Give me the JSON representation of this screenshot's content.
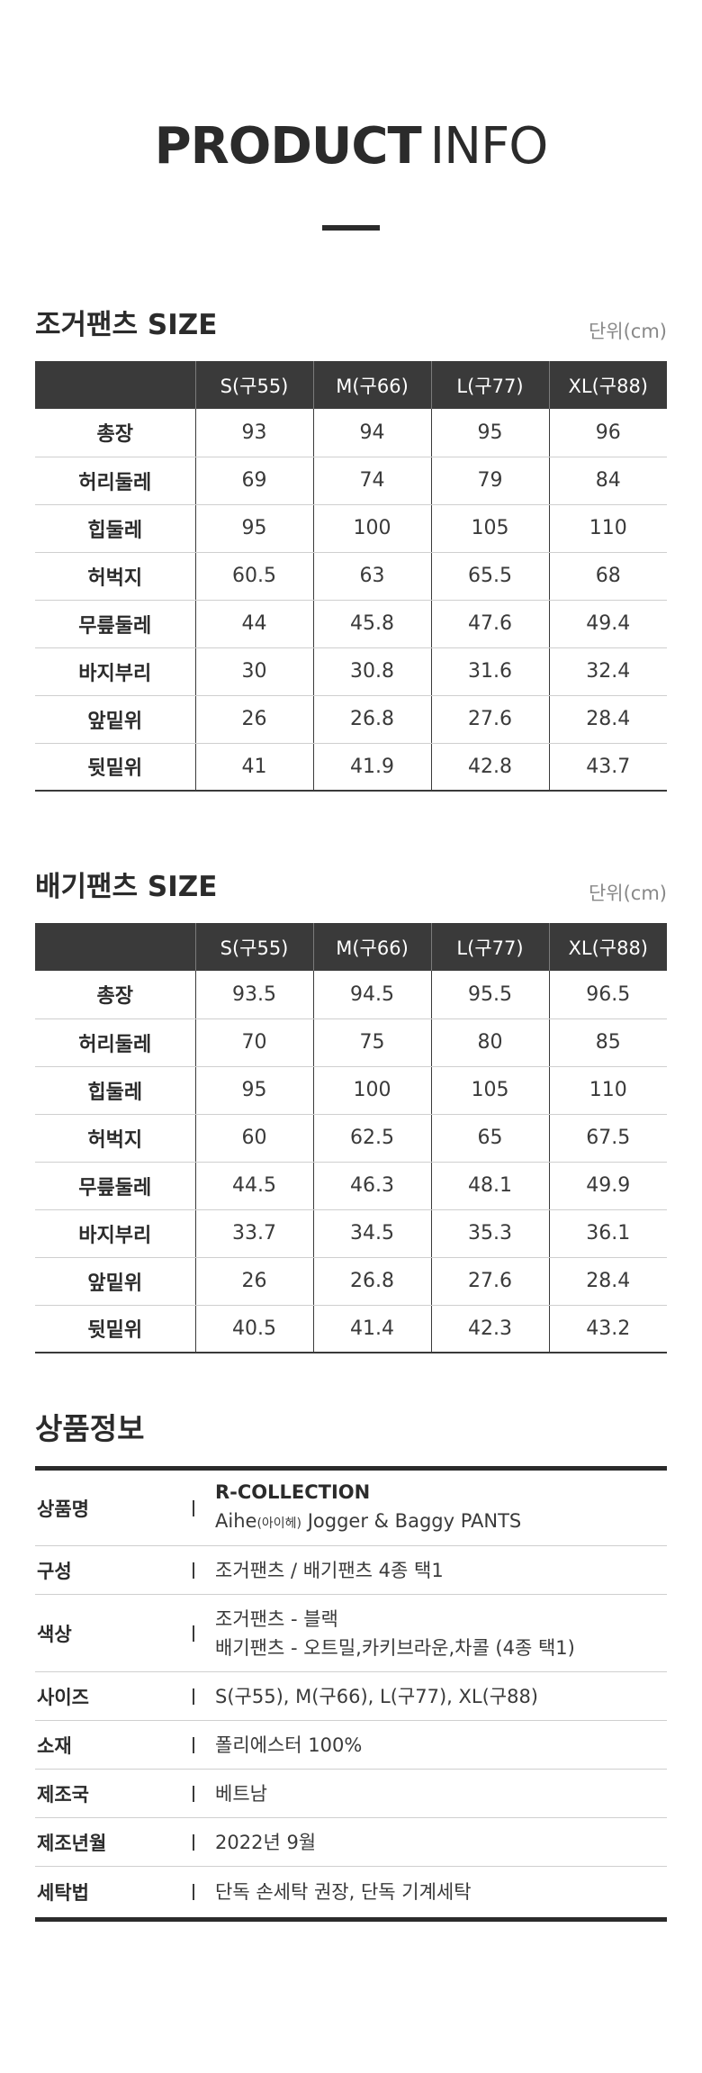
{
  "hero": {
    "title_bold": "PRODUCT",
    "title_light": "INFO"
  },
  "jogger": {
    "title": "조거팬츠 SIZE",
    "unit": "단위(cm)",
    "columns": [
      "",
      "S(구55)",
      "M(구66)",
      "L(구77)",
      "XL(구88)"
    ],
    "rows": [
      [
        "총장",
        "93",
        "94",
        "95",
        "96"
      ],
      [
        "허리둘레",
        "69",
        "74",
        "79",
        "84"
      ],
      [
        "힙둘레",
        "95",
        "100",
        "105",
        "110"
      ],
      [
        "허벅지",
        "60.5",
        "63",
        "65.5",
        "68"
      ],
      [
        "무릎둘레",
        "44",
        "45.8",
        "47.6",
        "49.4"
      ],
      [
        "바지부리",
        "30",
        "30.8",
        "31.6",
        "32.4"
      ],
      [
        "앞밑위",
        "26",
        "26.8",
        "27.6",
        "28.4"
      ],
      [
        "뒷밑위",
        "41",
        "41.9",
        "42.8",
        "43.7"
      ]
    ]
  },
  "baggy": {
    "title": "배기팬츠 SIZE",
    "unit": "단위(cm)",
    "columns": [
      "",
      "S(구55)",
      "M(구66)",
      "L(구77)",
      "XL(구88)"
    ],
    "rows": [
      [
        "총장",
        "93.5",
        "94.5",
        "95.5",
        "96.5"
      ],
      [
        "허리둘레",
        "70",
        "75",
        "80",
        "85"
      ],
      [
        "힙둘레",
        "95",
        "100",
        "105",
        "110"
      ],
      [
        "허벅지",
        "60",
        "62.5",
        "65",
        "67.5"
      ],
      [
        "무릎둘레",
        "44.5",
        "46.3",
        "48.1",
        "49.9"
      ],
      [
        "바지부리",
        "33.7",
        "34.5",
        "35.3",
        "36.1"
      ],
      [
        "앞밑위",
        "26",
        "26.8",
        "27.6",
        "28.4"
      ],
      [
        "뒷밑위",
        "40.5",
        "41.4",
        "42.3",
        "43.2"
      ]
    ]
  },
  "info": {
    "title": "상품정보",
    "name_label": "상품명",
    "brand": "R-COLLECTION",
    "name_pre": "Aihe",
    "name_small": "(아이헤)",
    "name_post": " Jogger & Baggy PANTS",
    "composition_label": "구성",
    "composition": "조거팬츠 / 배기팬츠 4종 택1",
    "color_label": "색상",
    "color_line1": "조거팬츠 - 블랙",
    "color_line2": "배기팬츠 - 오트밀,카키브라운,차콜 (4종 택1)",
    "size_label": "사이즈",
    "size": "S(구55), M(구66), L(구77), XL(구88)",
    "material_label": "소재",
    "material": "폴리에스터 100%",
    "country_label": "제조국",
    "country": "베트남",
    "date_label": "제조년월",
    "date": "2022년 9월",
    "wash_label": "세탁법",
    "wash": "단독 손세탁 권장, 단독 기계세탁"
  }
}
